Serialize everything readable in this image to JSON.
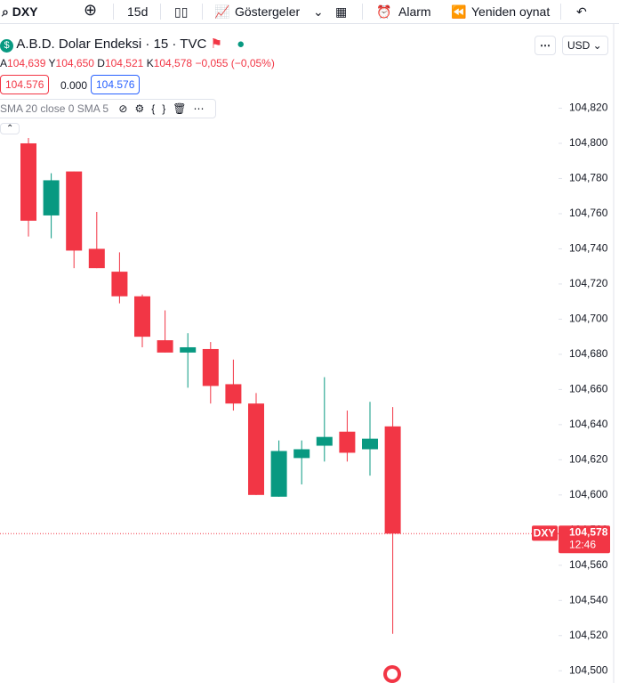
{
  "toolbar": {
    "symbol": "DXY",
    "interval": "15d",
    "indicators": "Göstergeler",
    "alarm": "Alarm",
    "replay": "Yeniden oynat"
  },
  "legend": {
    "title": "A.B.D. Dolar Endeksi · 15 · TVC",
    "open_label": "A",
    "open": "104,639",
    "high_label": "Y",
    "high": "104,650",
    "low_label": "D",
    "low": "104,521",
    "close_label": "K",
    "close": "104,578",
    "change": "−0,055 (−0,05%)",
    "bid": "104.576",
    "spread": "0.000",
    "ask": "104.576",
    "indicator": "SMA 20 close 0 SMA 5",
    "currency": "USD"
  },
  "chart_data": {
    "type": "candlestick",
    "up_color": "#089981",
    "down_color": "#f23645",
    "open": [
      104.8,
      104.759,
      104.784,
      104.74,
      104.727,
      104.713,
      104.688,
      104.681,
      104.683,
      104.663,
      104.652,
      104.599,
      104.621,
      104.628,
      104.636,
      104.626,
      104.639
    ],
    "high": [
      104.803,
      104.783,
      104.784,
      104.761,
      104.738,
      104.714,
      104.705,
      104.692,
      104.687,
      104.677,
      104.658,
      104.631,
      104.631,
      104.667,
      104.648,
      104.653,
      104.65
    ],
    "low": [
      104.747,
      104.746,
      104.729,
      104.729,
      104.709,
      104.684,
      104.681,
      104.661,
      104.652,
      104.648,
      104.6,
      104.599,
      104.606,
      104.619,
      104.619,
      104.611,
      104.521
    ],
    "close": [
      104.756,
      104.779,
      104.739,
      104.729,
      104.713,
      104.69,
      104.681,
      104.684,
      104.662,
      104.652,
      104.6,
      104.625,
      104.626,
      104.633,
      104.624,
      104.632,
      104.578
    ],
    "ylim": [
      104.4905,
      104.8395
    ],
    "yticks": [
      {
        "value": 104.5,
        "label": "104,500"
      },
      {
        "value": 104.52,
        "label": "104,520"
      },
      {
        "value": 104.54,
        "label": "104,540"
      },
      {
        "value": 104.56,
        "label": "104,560"
      },
      {
        "value": 104.58,
        "label": "104,580"
      },
      {
        "value": 104.6,
        "label": "104,600"
      },
      {
        "value": 104.62,
        "label": "104,620"
      },
      {
        "value": 104.64,
        "label": "104,640"
      },
      {
        "value": 104.66,
        "label": "104,660"
      },
      {
        "value": 104.68,
        "label": "104,680"
      },
      {
        "value": 104.7,
        "label": "104,700"
      },
      {
        "value": 104.72,
        "label": "104,720"
      },
      {
        "value": 104.74,
        "label": "104,740"
      },
      {
        "value": 104.76,
        "label": "104,760"
      },
      {
        "value": 104.78,
        "label": "104,780"
      },
      {
        "value": 104.8,
        "label": "104,800"
      },
      {
        "value": 104.82,
        "label": "104,820"
      }
    ],
    "last_price": {
      "value": 104.578,
      "label": "104,578",
      "symbol": "DXY",
      "countdown": "12:46"
    }
  }
}
